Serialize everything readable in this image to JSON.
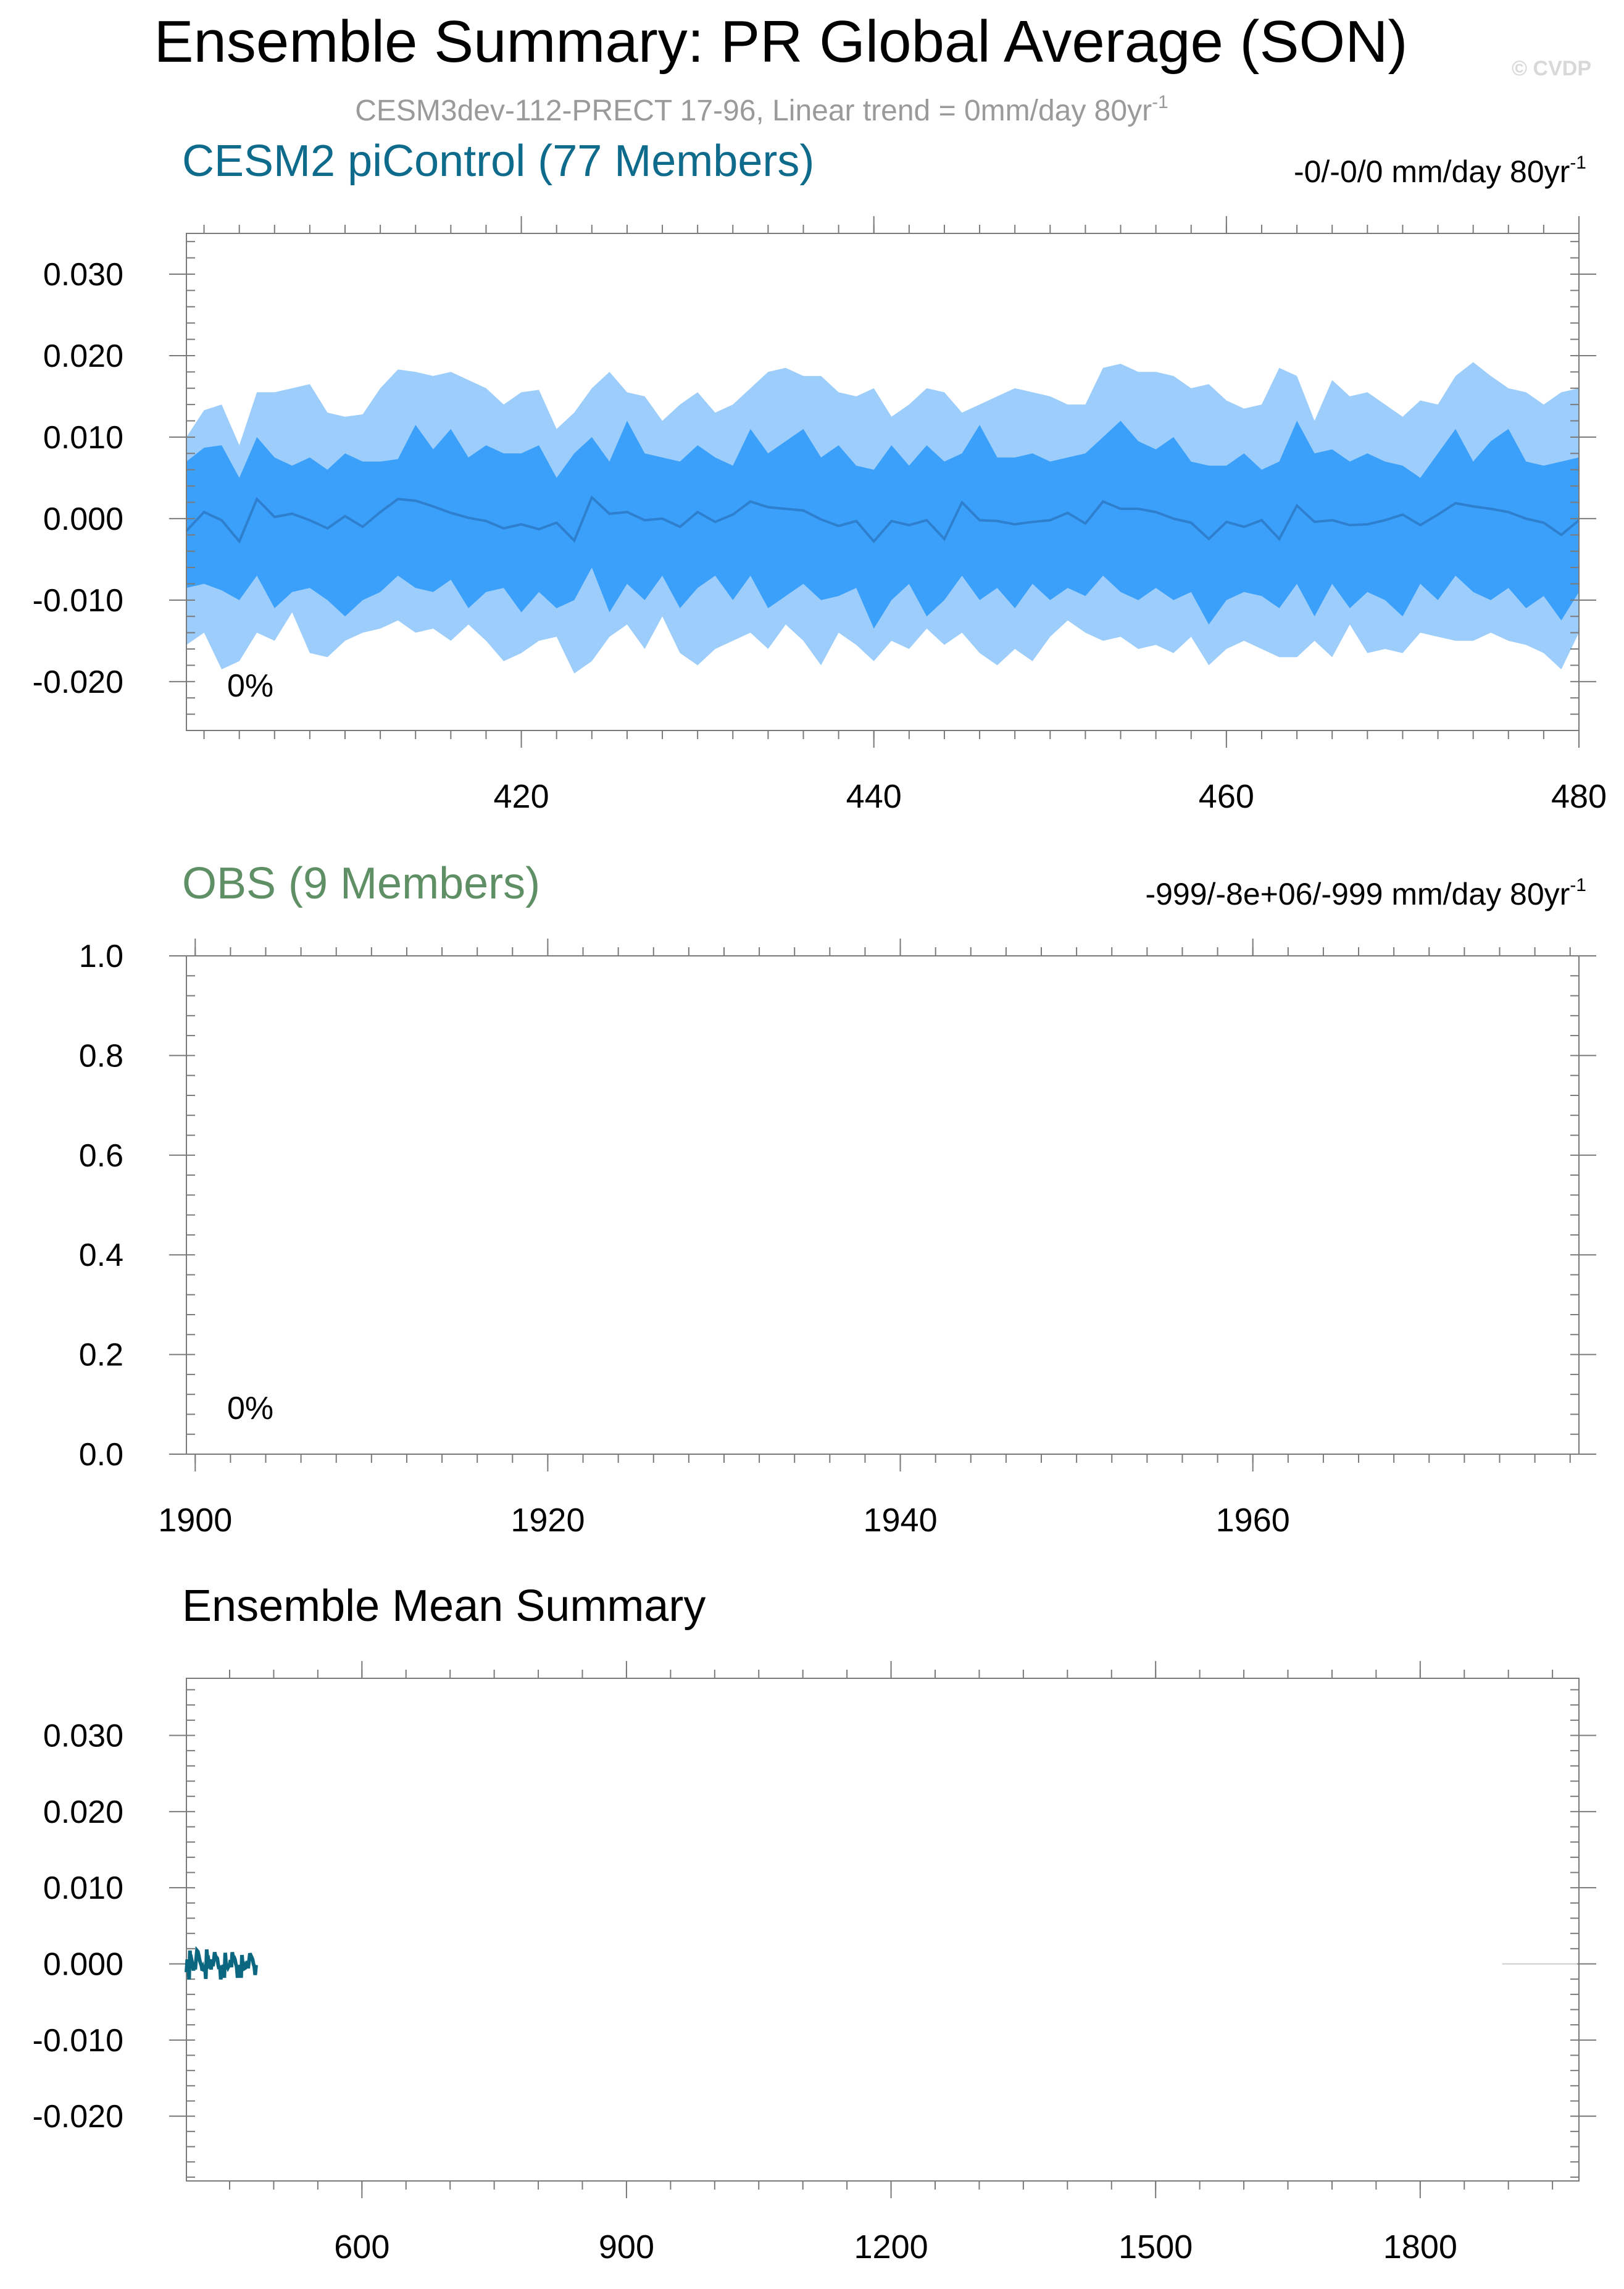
{
  "header": {
    "title": "Ensemble Summary: PR Global Average (SON)",
    "subtitle": "CESM3dev-112-PRECT 17-96, Linear trend = 0mm/day 80yr",
    "subtitle_sup": "-1",
    "watermark": "© CVDP"
  },
  "colors": {
    "model_title": "#0e6b8c",
    "obs_title": "#5f8f64",
    "outer_band": "#9ccdfb",
    "inner_band": "#3aa0fa",
    "mean_line": "#2f7fcf",
    "ensemble_mean_line": "#0b6680",
    "subtitle": "#9a9a9a",
    "axis": "#000000"
  },
  "chart_data": [
    {
      "type": "area",
      "title": "CESM2 piControl (77 Members)",
      "trend_label": "-0/-0/0 mm/day 80yr",
      "trend_sup": "-1",
      "percent_label": "0%",
      "xlim": [
        401,
        480
      ],
      "ylim": [
        -0.026,
        0.035
      ],
      "xticks": [
        420,
        440,
        460,
        480
      ],
      "xtick_labels": [
        "420",
        "440",
        "460",
        "480"
      ],
      "yticks": [
        0.03,
        0.02,
        0.01,
        0.0,
        -0.01,
        -0.02
      ],
      "ytick_labels": [
        "0.030",
        "0.020",
        "0.010",
        "0.000",
        "-0.010",
        "-0.020"
      ],
      "x": [
        401,
        402,
        403,
        404,
        405,
        406,
        407,
        408,
        409,
        410,
        411,
        412,
        413,
        414,
        415,
        416,
        417,
        418,
        419,
        420,
        421,
        422,
        423,
        424,
        425,
        426,
        427,
        428,
        429,
        430,
        431,
        432,
        433,
        434,
        435,
        436,
        437,
        438,
        439,
        440,
        441,
        442,
        443,
        444,
        445,
        446,
        447,
        448,
        449,
        450,
        451,
        452,
        453,
        454,
        455,
        456,
        457,
        458,
        459,
        460,
        461,
        462,
        463,
        464,
        465,
        466,
        467,
        468,
        469,
        470,
        471,
        472,
        473,
        474,
        475,
        476,
        477,
        478,
        479,
        480
      ],
      "series": [
        {
          "name": "p97.5",
          "values": [
            0.01,
            0.0133,
            0.014,
            0.009,
            0.0155,
            0.0155,
            0.016,
            0.0165,
            0.013,
            0.0125,
            0.0128,
            0.016,
            0.0183,
            0.018,
            0.0175,
            0.018,
            0.017,
            0.016,
            0.014,
            0.0155,
            0.0158,
            0.011,
            0.013,
            0.016,
            0.018,
            0.0155,
            0.015,
            0.012,
            0.014,
            0.0155,
            0.013,
            0.014,
            0.016,
            0.018,
            0.0185,
            0.0175,
            0.0175,
            0.0155,
            0.015,
            0.016,
            0.0125,
            0.014,
            0.016,
            0.0155,
            0.013,
            0.014,
            0.015,
            0.016,
            0.0155,
            0.015,
            0.014,
            0.014,
            0.0185,
            0.019,
            0.018,
            0.018,
            0.0175,
            0.016,
            0.0165,
            0.0145,
            0.0135,
            0.014,
            0.0185,
            0.0175,
            0.012,
            0.017,
            0.015,
            0.0155,
            0.014,
            0.0125,
            0.0145,
            0.014,
            0.0175,
            0.0192,
            0.0175,
            0.016,
            0.0155,
            0.014,
            0.0155,
            0.016
          ]
        },
        {
          "name": "p84",
          "values": [
            0.007,
            0.0087,
            0.009,
            0.005,
            0.01,
            0.0075,
            0.0065,
            0.0075,
            0.006,
            0.008,
            0.007,
            0.007,
            0.0073,
            0.0115,
            0.0085,
            0.011,
            0.0075,
            0.009,
            0.008,
            0.008,
            0.009,
            0.005,
            0.008,
            0.01,
            0.007,
            0.012,
            0.008,
            0.0075,
            0.007,
            0.009,
            0.0075,
            0.0065,
            0.011,
            0.008,
            0.0095,
            0.011,
            0.0075,
            0.009,
            0.0065,
            0.006,
            0.009,
            0.0065,
            0.009,
            0.007,
            0.008,
            0.0115,
            0.0075,
            0.0075,
            0.008,
            0.007,
            0.0075,
            0.008,
            0.01,
            0.012,
            0.0095,
            0.0085,
            0.01,
            0.007,
            0.0065,
            0.0065,
            0.008,
            0.006,
            0.007,
            0.012,
            0.008,
            0.0085,
            0.007,
            0.008,
            0.007,
            0.0065,
            0.005,
            0.008,
            0.011,
            0.007,
            0.0095,
            0.011,
            0.007,
            0.0065,
            0.007,
            0.0075
          ]
        },
        {
          "name": "mean",
          "values": [
            -0.0015,
            0.0008,
            -0.0002,
            -0.0028,
            0.0024,
            0.0002,
            0.0006,
            -0.0002,
            -0.0012,
            0.0003,
            -0.001,
            0.0008,
            0.0024,
            0.0022,
            0.0015,
            0.0007,
            0.0001,
            -0.0003,
            -0.0012,
            -0.0007,
            -0.0013,
            -0.0005,
            -0.0027,
            0.0026,
            0.0006,
            0.0008,
            -0.0002,
            0.0,
            -0.001,
            0.0008,
            -0.0004,
            0.0005,
            0.0021,
            0.0014,
            0.0012,
            0.001,
            -0.0001,
            -0.0009,
            -0.0003,
            -0.0028,
            -0.0003,
            -0.0008,
            -0.0002,
            -0.0025,
            0.002,
            -0.0002,
            -0.0003,
            -0.0007,
            -0.0004,
            -0.0002,
            0.0007,
            -0.0006,
            0.0021,
            0.0012,
            0.0012,
            0.0008,
            0.0,
            -0.0005,
            -0.0025,
            -0.0004,
            -0.001,
            -0.0002,
            -0.0025,
            0.0016,
            -0.0004,
            -0.0002,
            -0.0008,
            -0.0007,
            -0.0002,
            0.0005,
            -0.0008,
            0.0005,
            0.0019,
            0.0015,
            0.0012,
            0.0008,
            0.0,
            -0.0005,
            -0.002,
            -0.0002
          ]
        },
        {
          "name": "p16",
          "values": [
            -0.0085,
            -0.008,
            -0.0088,
            -0.01,
            -0.007,
            -0.011,
            -0.009,
            -0.0085,
            -0.01,
            -0.012,
            -0.01,
            -0.009,
            -0.007,
            -0.0085,
            -0.009,
            -0.0075,
            -0.011,
            -0.009,
            -0.0085,
            -0.0115,
            -0.009,
            -0.011,
            -0.01,
            -0.006,
            -0.0115,
            -0.008,
            -0.01,
            -0.007,
            -0.011,
            -0.0085,
            -0.007,
            -0.01,
            -0.007,
            -0.011,
            -0.0095,
            -0.008,
            -0.01,
            -0.0095,
            -0.0085,
            -0.0135,
            -0.01,
            -0.008,
            -0.012,
            -0.01,
            -0.007,
            -0.01,
            -0.0085,
            -0.011,
            -0.008,
            -0.01,
            -0.0085,
            -0.0095,
            -0.007,
            -0.009,
            -0.01,
            -0.0085,
            -0.01,
            -0.009,
            -0.013,
            -0.01,
            -0.009,
            -0.0095,
            -0.011,
            -0.008,
            -0.012,
            -0.008,
            -0.011,
            -0.009,
            -0.01,
            -0.012,
            -0.008,
            -0.01,
            -0.007,
            -0.009,
            -0.01,
            -0.0085,
            -0.011,
            -0.0095,
            -0.0125,
            -0.009
          ]
        },
        {
          "name": "p2.5",
          "values": [
            -0.0155,
            -0.014,
            -0.0185,
            -0.0175,
            -0.014,
            -0.015,
            -0.0115,
            -0.0165,
            -0.017,
            -0.015,
            -0.014,
            -0.0135,
            -0.0125,
            -0.014,
            -0.0135,
            -0.015,
            -0.013,
            -0.015,
            -0.0175,
            -0.0165,
            -0.015,
            -0.0145,
            -0.019,
            -0.0175,
            -0.0145,
            -0.013,
            -0.016,
            -0.012,
            -0.0165,
            -0.018,
            -0.016,
            -0.015,
            -0.014,
            -0.016,
            -0.013,
            -0.015,
            -0.018,
            -0.014,
            -0.0155,
            -0.0175,
            -0.015,
            -0.016,
            -0.0135,
            -0.0155,
            -0.014,
            -0.0165,
            -0.018,
            -0.016,
            -0.0175,
            -0.0145,
            -0.0125,
            -0.014,
            -0.015,
            -0.0145,
            -0.016,
            -0.0155,
            -0.0165,
            -0.0145,
            -0.018,
            -0.016,
            -0.015,
            -0.016,
            -0.017,
            -0.017,
            -0.015,
            -0.017,
            -0.013,
            -0.0165,
            -0.016,
            -0.0165,
            -0.014,
            -0.0145,
            -0.015,
            -0.015,
            -0.014,
            -0.015,
            -0.0155,
            -0.0165,
            -0.0185,
            -0.014
          ]
        }
      ]
    },
    {
      "type": "area",
      "title": "OBS (9 Members)",
      "trend_label": "-999/-8e+06/-999 mm/day 80yr",
      "trend_sup": "-1",
      "percent_label": "0%",
      "xlim": [
        1899.5,
        1978.5
      ],
      "ylim": [
        0,
        1
      ],
      "xticks": [
        1900,
        1920,
        1940,
        1960
      ],
      "xtick_labels": [
        "1900",
        "1920",
        "1940",
        "1960"
      ],
      "yticks": [
        1.0,
        0.8,
        0.6,
        0.4,
        0.2,
        0.0
      ],
      "ytick_labels": [
        "1.0",
        "0.8",
        "0.6",
        "0.4",
        "0.2",
        "0.0"
      ],
      "series": []
    },
    {
      "type": "line",
      "title": "Ensemble Mean Summary",
      "xlim": [
        401,
        1980
      ],
      "ylim": [
        -0.0285,
        0.0375
      ],
      "xticks": [
        600,
        900,
        1200,
        1500,
        1800
      ],
      "xtick_labels": [
        "600",
        "900",
        "1200",
        "1500",
        "1800"
      ],
      "yticks": [
        0.03,
        0.02,
        0.01,
        0.0,
        -0.01,
        -0.02
      ],
      "ytick_labels": [
        "0.030",
        "0.020",
        "0.010",
        "0.000",
        "-0.010",
        "-0.020"
      ],
      "series_note": "uses CESM2 mean series over 401-480"
    }
  ]
}
